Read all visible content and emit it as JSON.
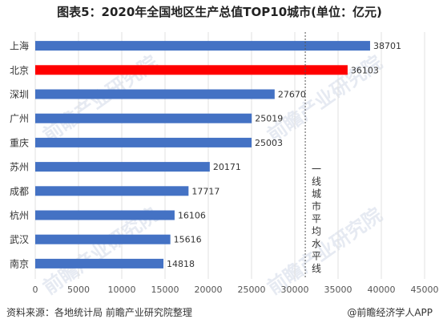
{
  "chart_data": {
    "type": "bar",
    "orientation": "horizontal",
    "title": "图表5：2020年全国地区生产总值TOP10城市(单位：亿元)",
    "categories": [
      "上海",
      "北京",
      "深圳",
      "广州",
      "重庆",
      "苏州",
      "成都",
      "杭州",
      "武汉",
      "南京"
    ],
    "values": [
      38701,
      36103,
      27670,
      25019,
      25003,
      20171,
      17717,
      16106,
      15616,
      14818
    ],
    "highlight_index": 1,
    "xlim": [
      0,
      45000
    ],
    "x_ticks": [
      0,
      5000,
      10000,
      15000,
      20000,
      25000,
      30000,
      35000,
      40000,
      45000
    ],
    "reference_line": {
      "value": 31210,
      "label": "一线城市平均水平线",
      "style": "dashed"
    },
    "colors": {
      "bar": "#4472c4",
      "highlight": "#ff0000",
      "reference": "#555555"
    },
    "grid": "vertical"
  },
  "watermark": "前瞻产业研究院",
  "footer": {
    "source": "资料来源：各地统计局 前瞻产业研究院整理",
    "brand": "@前瞻经济学人APP"
  }
}
